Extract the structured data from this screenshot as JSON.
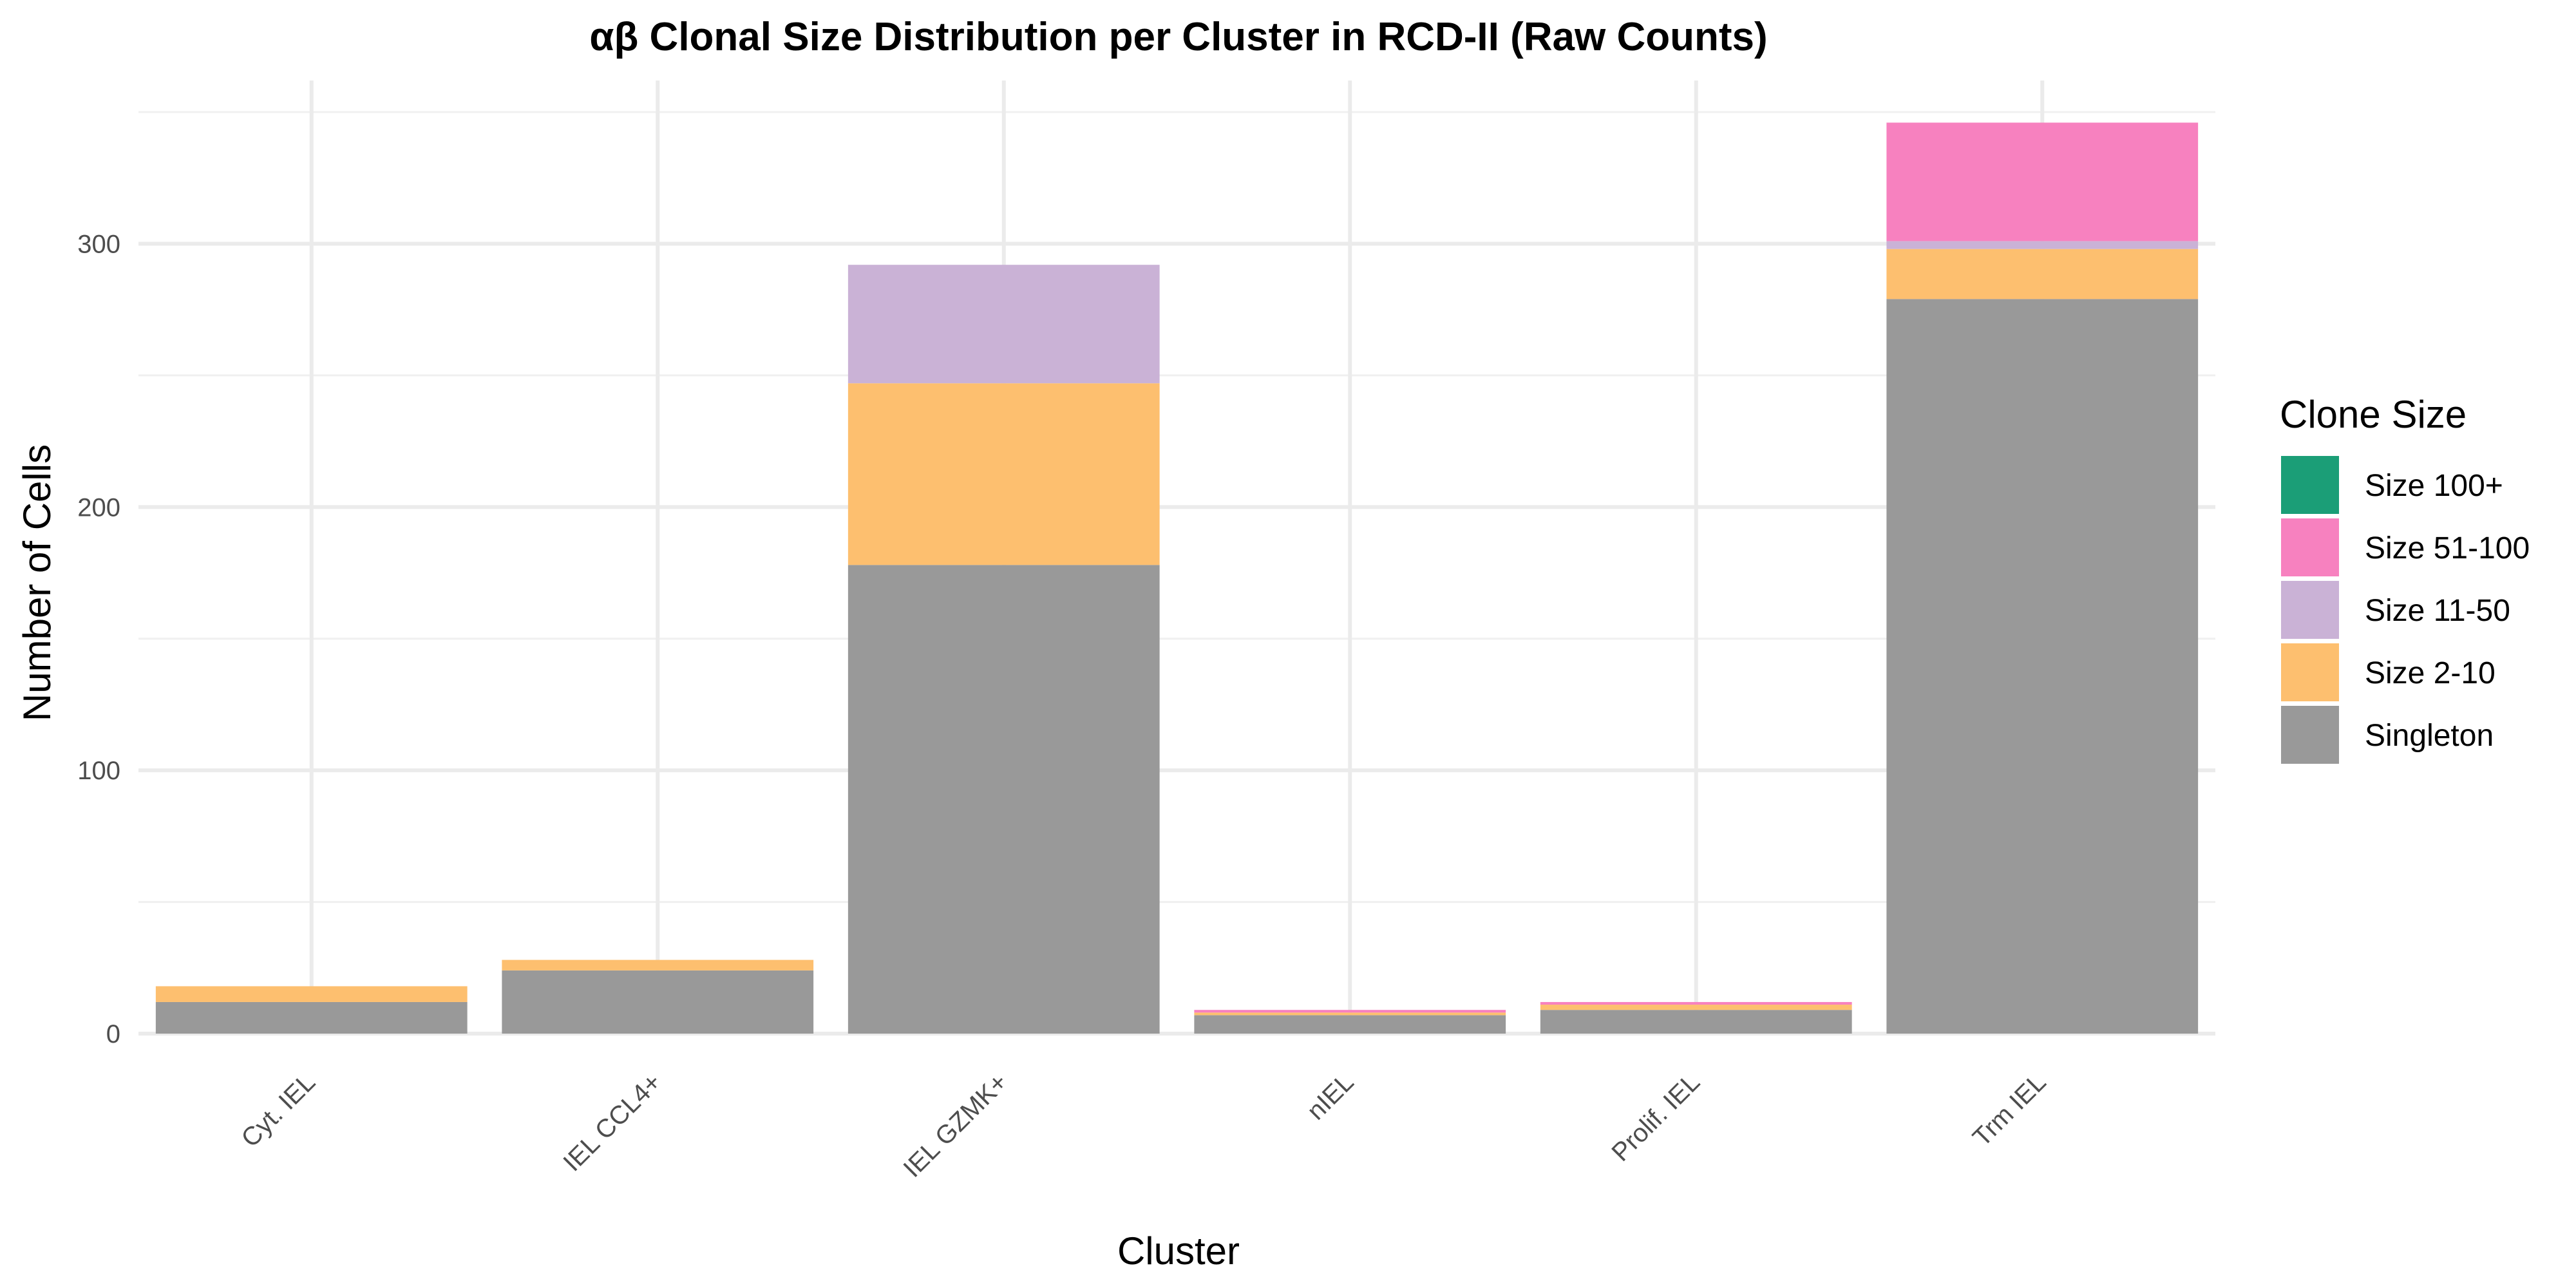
{
  "chart_data": {
    "type": "bar",
    "stacked": true,
    "title": "αβ Clonal Size Distribution per Cluster in RCD-II (Raw Counts)",
    "xlabel": "Cluster",
    "ylabel": "Number of Cells",
    "ylim": [
      0,
      362
    ],
    "yticks": [
      0,
      100,
      200,
      300
    ],
    "grid": true,
    "categories": [
      "Cyt. IEL",
      "IEL CCL4+",
      "IEL GZMK+",
      "nIEL",
      "Prolif. IEL",
      "Trm IEL"
    ],
    "series": [
      {
        "name": "Singleton",
        "color": "#999999",
        "values": [
          12,
          24,
          178,
          7,
          9,
          279
        ]
      },
      {
        "name": "Size 2-10",
        "color": "#FDBF6F",
        "values": [
          6,
          4,
          69,
          1,
          2,
          19
        ]
      },
      {
        "name": "Size 11-50",
        "color": "#CAB2D6",
        "values": [
          0,
          0,
          45,
          0,
          0,
          3
        ]
      },
      {
        "name": "Size 51-100",
        "color": "#F781BF",
        "values": [
          0,
          0,
          0,
          1,
          1,
          45
        ]
      },
      {
        "name": "Size 100+",
        "color": "#1B9E77",
        "values": [
          0,
          0,
          0,
          0,
          0,
          0
        ]
      }
    ],
    "legend": {
      "title": "Clone Size",
      "position": "right",
      "order": [
        "Size 100+",
        "Size 51-100",
        "Size 11-50",
        "Size 2-10",
        "Singleton"
      ]
    }
  }
}
